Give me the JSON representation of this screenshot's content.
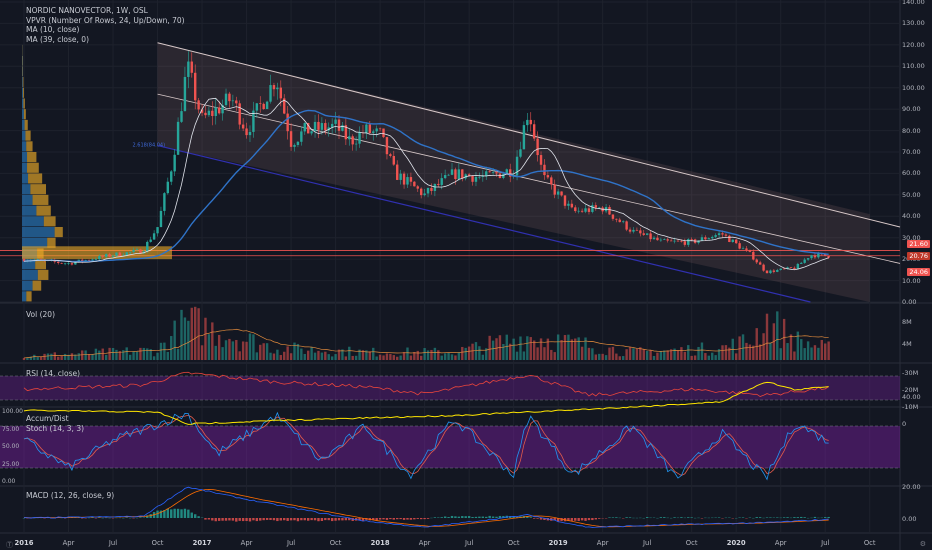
{
  "header": {
    "symbol_line": "NORDIC NANOVECTOR, 1W, OSL",
    "vpvr": "VPVR (Number Of Rows, 24, Up/Down, 70)",
    "ma10": "MA (10, close)",
    "ma39": "MA (39, close, 0)"
  },
  "colors": {
    "background": "#131722",
    "up": "#26a69a",
    "down": "#ef5350",
    "ma10": "#e0e3eb",
    "ma39": "#2f73c8",
    "rsi": "#e8453c",
    "stoch_k": "#2196f3",
    "stoch_d": "#e25a4b",
    "accum": "#ffe600",
    "band": "#7b1fa2"
  },
  "price_pane": {
    "y_ticks": [
      "140.00",
      "130.00",
      "120.00",
      "110.00",
      "100.00",
      "90.00",
      "80.00",
      "70.00",
      "60.00",
      "50.00",
      "40.00",
      "30.00",
      "20.00",
      "10.00",
      "0.00"
    ],
    "price_tags": [
      {
        "text": "21.60",
        "color": "#ef5350"
      },
      {
        "text": "20.76",
        "color": "#c0392b"
      },
      {
        "text": "24.06",
        "color": "#ef5350"
      }
    ],
    "channel_label": "2.618(84.04)"
  },
  "volume_pane": {
    "label": "Vol (20)",
    "y_ticks": [
      "8M",
      "4M"
    ]
  },
  "rsi_pane": {
    "label": "RSI (14, close)",
    "y_ticks": [
      "40.00"
    ]
  },
  "stoch_pane": {
    "label_accum": "Accum/Dist",
    "label_stoch": "Stoch (14, 3, 3)",
    "left_ticks": [
      "100.00",
      "75.00",
      "50.00",
      "25.00",
      "0.00"
    ],
    "right_ticks": [
      "0",
      "-10M",
      "-20M",
      "-30M"
    ]
  },
  "macd_pane": {
    "label": "MACD (12, 26, close, 9)",
    "y_ticks": [
      "20.00",
      "0.00"
    ]
  },
  "x_axis": [
    {
      "text": "2016",
      "bold": true
    },
    {
      "text": "Apr",
      "bold": false
    },
    {
      "text": "Jul",
      "bold": false
    },
    {
      "text": "Oct",
      "bold": false
    },
    {
      "text": "2017",
      "bold": true
    },
    {
      "text": "Apr",
      "bold": false
    },
    {
      "text": "Jul",
      "bold": false
    },
    {
      "text": "Oct",
      "bold": false
    },
    {
      "text": "2018",
      "bold": true
    },
    {
      "text": "Apr",
      "bold": false
    },
    {
      "text": "Jul",
      "bold": false
    },
    {
      "text": "Oct",
      "bold": false
    },
    {
      "text": "2019",
      "bold": true
    },
    {
      "text": "Apr",
      "bold": false
    },
    {
      "text": "Jul",
      "bold": false
    },
    {
      "text": "Oct",
      "bold": false
    },
    {
      "text": "2020",
      "bold": true
    },
    {
      "text": "Apr",
      "bold": false
    },
    {
      "text": "Jul",
      "bold": false
    },
    {
      "text": "Oct",
      "bold": false
    }
  ],
  "chart_data": {
    "type": "candlestick",
    "title": "NORDIC NANOVECTOR, 1W, OSL",
    "ylim": [
      0,
      140
    ],
    "anchors_price": [
      [
        "2016-01",
        20
      ],
      [
        "2016-04",
        18
      ],
      [
        "2016-07",
        22
      ],
      [
        "2016-09",
        24
      ],
      [
        "2016-10",
        35
      ],
      [
        "2016-11",
        65
      ],
      [
        "2016-12",
        110
      ],
      [
        "2017-01",
        85
      ],
      [
        "2017-03",
        95
      ],
      [
        "2017-04",
        80
      ],
      [
        "2017-06",
        105
      ],
      [
        "2017-07",
        75
      ],
      [
        "2017-08",
        80
      ],
      [
        "2017-10",
        82
      ],
      [
        "2017-11",
        75
      ],
      [
        "2017-12",
        80
      ],
      [
        "2018-01",
        78
      ],
      [
        "2018-02",
        60
      ],
      [
        "2018-04",
        50
      ],
      [
        "2018-06",
        60
      ],
      [
        "2018-08",
        58
      ],
      [
        "2018-10",
        62
      ],
      [
        "2018-11",
        90
      ],
      [
        "2018-12",
        58
      ],
      [
        "2019-02",
        42
      ],
      [
        "2019-04",
        44
      ],
      [
        "2019-06",
        33
      ],
      [
        "2019-08",
        28
      ],
      [
        "2019-10",
        28
      ],
      [
        "2019-12",
        32
      ],
      [
        "2020-02",
        22
      ],
      [
        "2020-03",
        14
      ],
      [
        "2020-05",
        16
      ],
      [
        "2020-06",
        22
      ],
      [
        "2020-07",
        21.6
      ]
    ],
    "anchors_volume_millions": [
      [
        "2016-01",
        1
      ],
      [
        "2016-10",
        2.5
      ],
      [
        "2016-12",
        9.5
      ],
      [
        "2017-06",
        3
      ],
      [
        "2017-12",
        2
      ],
      [
        "2018-06",
        2
      ],
      [
        "2018-11",
        6
      ],
      [
        "2019-06",
        2
      ],
      [
        "2019-12",
        3
      ],
      [
        "2020-02",
        5
      ],
      [
        "2020-03",
        10
      ],
      [
        "2020-05",
        5
      ],
      [
        "2020-07",
        3
      ]
    ],
    "anchors_rsi": [
      [
        "2016-01",
        48
      ],
      [
        "2016-09",
        55
      ],
      [
        "2016-12",
        75
      ],
      [
        "2017-06",
        60
      ],
      [
        "2017-12",
        52
      ],
      [
        "2018-04",
        40
      ],
      [
        "2018-11",
        72
      ],
      [
        "2019-03",
        38
      ],
      [
        "2019-10",
        48
      ],
      [
        "2020-03",
        38
      ],
      [
        "2020-07",
        50
      ]
    ],
    "anchors_stoch": [
      [
        "2016-01",
        60
      ],
      [
        "2016-04",
        20
      ],
      [
        "2016-07",
        60
      ],
      [
        "2016-12",
        98
      ],
      [
        "2017-02",
        40
      ],
      [
        "2017-06",
        95
      ],
      [
        "2017-09",
        30
      ],
      [
        "2017-12",
        80
      ],
      [
        "2018-03",
        10
      ],
      [
        "2018-06",
        90
      ],
      [
        "2018-10",
        10
      ],
      [
        "2018-11",
        95
      ],
      [
        "2019-02",
        10
      ],
      [
        "2019-06",
        80
      ],
      [
        "2019-09",
        5
      ],
      [
        "2019-12",
        70
      ],
      [
        "2020-03",
        5
      ],
      [
        "2020-05",
        85
      ],
      [
        "2020-07",
        60
      ]
    ],
    "anchors_accum_millions": [
      [
        "2016-01",
        -8
      ],
      [
        "2016-10",
        -7
      ],
      [
        "2016-12",
        0
      ],
      [
        "2017-06",
        -2
      ],
      [
        "2018-06",
        -5
      ],
      [
        "2018-11",
        -7
      ],
      [
        "2019-06",
        -10
      ],
      [
        "2019-12",
        -13
      ],
      [
        "2020-03",
        -25
      ],
      [
        "2020-05",
        -20
      ],
      [
        "2020-07",
        -22
      ]
    ],
    "anchors_macd": [
      [
        "2016-01",
        0
      ],
      [
        "2016-09",
        1
      ],
      [
        "2016-12",
        20
      ],
      [
        "2017-04",
        12
      ],
      [
        "2017-12",
        -2
      ],
      [
        "2018-04",
        -6
      ],
      [
        "2018-11",
        2
      ],
      [
        "2019-03",
        -6
      ],
      [
        "2019-10",
        -4
      ],
      [
        "2020-03",
        -3
      ],
      [
        "2020-07",
        -1
      ]
    ]
  }
}
